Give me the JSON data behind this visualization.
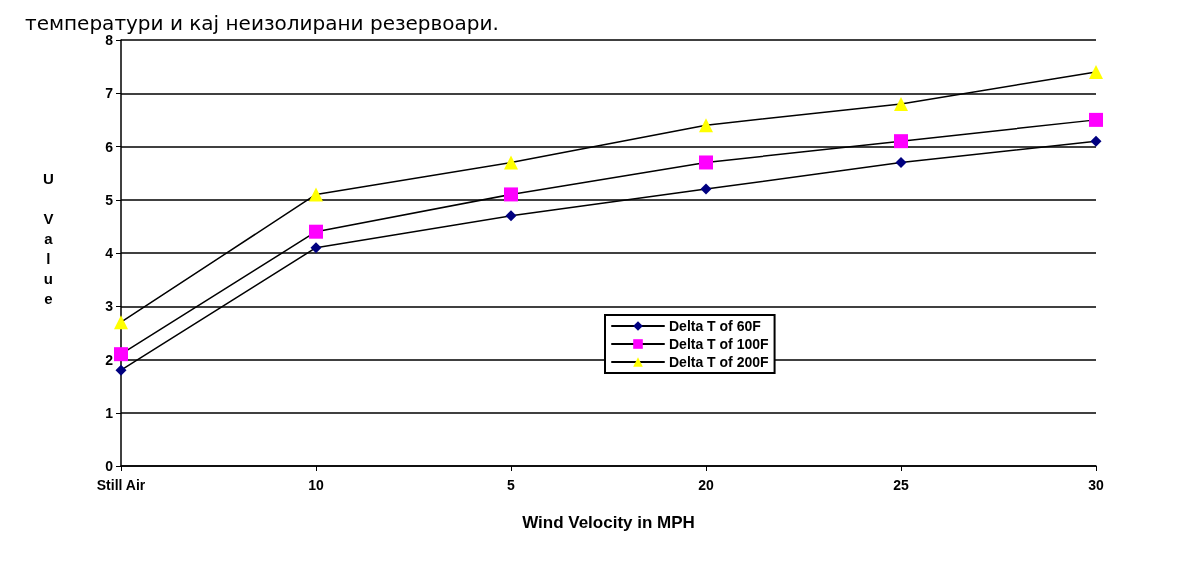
{
  "chart_data": {
    "type": "line",
    "xlabel": "Wind Velocity in MPH",
    "ylabel": "U Value",
    "annotations": [
      "температури и кај неизолирани резервоари."
    ],
    "categories": [
      "Still Air",
      "10",
      "5",
      "20",
      "25",
      "30"
    ],
    "series": [
      {
        "name": "Delta T of 60F",
        "color": "#000080",
        "marker": "diamond",
        "values": [
          1.8,
          4.1,
          4.7,
          5.2,
          5.7,
          6.1
        ]
      },
      {
        "name": "Delta T of 100F",
        "color": "#ff00ff",
        "marker": "square",
        "values": [
          2.1,
          4.4,
          5.1,
          5.7,
          6.1,
          6.5
        ]
      },
      {
        "name": "Delta T of 200F",
        "color": "#ffff00",
        "marker": "triangle",
        "values": [
          2.7,
          5.1,
          5.7,
          6.4,
          6.8,
          7.4
        ]
      }
    ],
    "line_style": "solid",
    "ylim": [
      0,
      8
    ],
    "yticks": [
      0,
      1,
      2,
      3,
      4,
      5,
      6,
      7,
      8
    ],
    "grid": "y",
    "legend": "center right"
  }
}
